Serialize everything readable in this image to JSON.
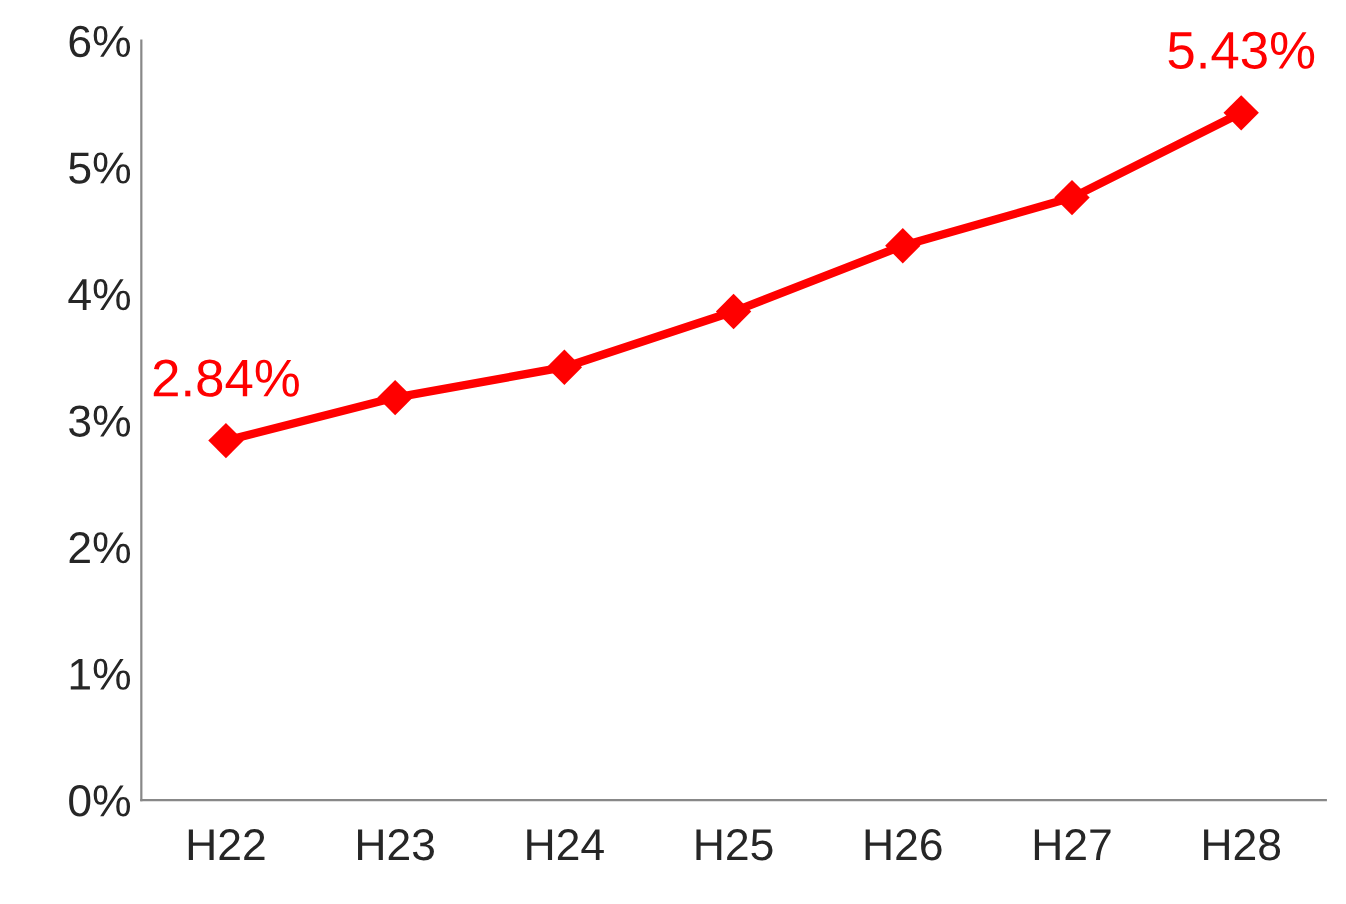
{
  "chart_data": {
    "type": "line",
    "categories": [
      "H22",
      "H23",
      "H24",
      "H25",
      "H26",
      "H27",
      "H28"
    ],
    "series": [
      {
        "color": "#ff0000",
        "values": [
          2.84,
          3.18,
          3.42,
          3.86,
          4.38,
          4.76,
          5.43
        ],
        "value_labels": [
          "2.84%",
          null,
          null,
          null,
          null,
          null,
          "5.43%"
        ]
      }
    ],
    "ylim": [
      0,
      6
    ],
    "yticks": [
      {
        "value": 0,
        "label": "0%"
      },
      {
        "value": 1,
        "label": "1%"
      },
      {
        "value": 2,
        "label": "2%"
      },
      {
        "value": 3,
        "label": "3%"
      },
      {
        "value": 4,
        "label": "4%"
      },
      {
        "value": 5,
        "label": "5%"
      },
      {
        "value": 6,
        "label": "6%"
      }
    ],
    "grid": false,
    "legend": false,
    "marker": "diamond",
    "line_style": "solid"
  }
}
